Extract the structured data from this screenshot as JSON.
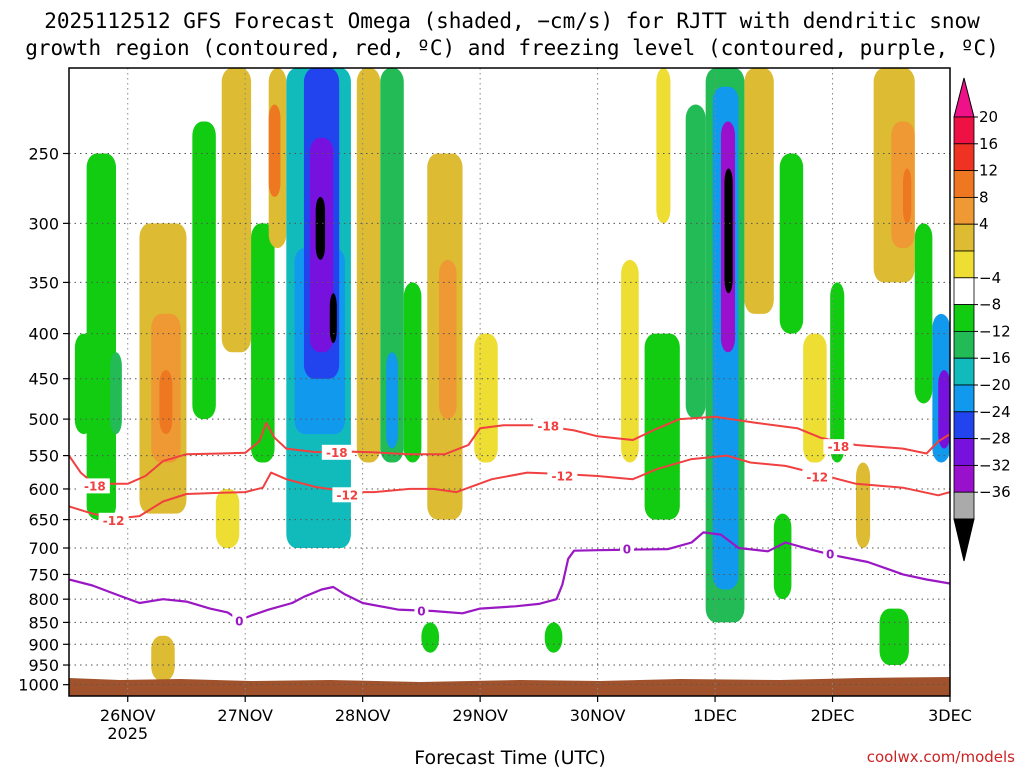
{
  "chart_data": {
    "type": "heatmap",
    "title_line1": "2025112512 GFS Forecast Omega (shaded, −cm/s) for RJTT with dendritic snow",
    "title_line2": "growth region (contoured, red, ºC) and freezing level (contoured, purple, ºC)",
    "xlabel": "Forecast Time (UTC)",
    "credit": "coolwx.com/models",
    "x_ticks": [
      {
        "day": 26,
        "label": "26NOV",
        "sub": "2025"
      },
      {
        "day": 27,
        "label": "27NOV",
        "sub": ""
      },
      {
        "day": 28,
        "label": "28NOV",
        "sub": ""
      },
      {
        "day": 29,
        "label": "29NOV",
        "sub": ""
      },
      {
        "day": 30,
        "label": "30NOV",
        "sub": ""
      },
      {
        "day": 31,
        "label": "1DEC",
        "sub": ""
      },
      {
        "day": 32,
        "label": "2DEC",
        "sub": ""
      },
      {
        "day": 33,
        "label": "3DEC",
        "sub": ""
      }
    ],
    "xlim": [
      25.5,
      33.0
    ],
    "y_axis": "pressure (hPa), log scale, inverted",
    "ylim": [
      1030,
      200
    ],
    "y_ticks": [
      250,
      300,
      350,
      400,
      450,
      500,
      550,
      600,
      650,
      700,
      750,
      800,
      850,
      900,
      950,
      1000
    ],
    "grid": true,
    "colorbar": {
      "labels": [
        "20",
        "16",
        "12",
        "8",
        "4",
        "−4",
        "−8",
        "−12",
        "−16",
        "−20",
        "−24",
        "−28",
        "−32",
        "−36"
      ],
      "colors": [
        "#ee1144",
        "#ee3322",
        "#ee7722",
        "#ee9933",
        "#ddbb33",
        "#eedd33",
        "#ffffff",
        "#11cc11",
        "#22bb55",
        "#11bbbb",
        "#1199ee",
        "#2244ee",
        "#7711dd",
        "#9911cc",
        "#aaaaaa",
        "#000000"
      ]
    },
    "shading_cells": [
      {
        "x0": 25.65,
        "x1": 25.9,
        "p_top": 250,
        "p_bot": 650,
        "value": -6
      },
      {
        "x0": 25.55,
        "x1": 25.7,
        "p_top": 400,
        "p_bot": 520,
        "value": -6
      },
      {
        "x0": 25.85,
        "x1": 25.95,
        "p_top": 420,
        "p_bot": 520,
        "value": -10
      },
      {
        "x0": 26.1,
        "x1": 26.5,
        "p_top": 300,
        "p_bot": 640,
        "value": 6
      },
      {
        "x0": 26.2,
        "x1": 26.45,
        "p_top": 380,
        "p_bot": 560,
        "value": 10
      },
      {
        "x0": 26.27,
        "x1": 26.38,
        "p_top": 440,
        "p_bot": 520,
        "value": 14
      },
      {
        "x0": 26.2,
        "x1": 26.4,
        "p_top": 880,
        "p_bot": 990,
        "value": 6
      },
      {
        "x0": 26.55,
        "x1": 26.75,
        "p_top": 230,
        "p_bot": 500,
        "value": -6
      },
      {
        "x0": 26.8,
        "x1": 27.05,
        "p_top": 200,
        "p_bot": 420,
        "value": 6
      },
      {
        "x0": 26.75,
        "x1": 26.95,
        "p_top": 600,
        "p_bot": 700,
        "value": 5
      },
      {
        "x0": 27.05,
        "x1": 27.25,
        "p_top": 300,
        "p_bot": 560,
        "value": -6
      },
      {
        "x0": 27.2,
        "x1": 27.35,
        "p_top": 200,
        "p_bot": 320,
        "value": 6
      },
      {
        "x0": 27.2,
        "x1": 27.3,
        "p_top": 220,
        "p_bot": 280,
        "value": 12
      },
      {
        "x0": 27.35,
        "x1": 27.9,
        "p_top": 200,
        "p_bot": 700,
        "value": -12
      },
      {
        "x0": 27.42,
        "x1": 27.85,
        "p_top": 320,
        "p_bot": 520,
        "value": -18
      },
      {
        "x0": 27.5,
        "x1": 27.8,
        "p_top": 200,
        "p_bot": 450,
        "value": -22
      },
      {
        "x0": 27.55,
        "x1": 27.75,
        "p_top": 240,
        "p_bot": 420,
        "value": -26
      },
      {
        "x0": 27.6,
        "x1": 27.68,
        "p_top": 280,
        "p_bot": 330,
        "value": -34
      },
      {
        "x0": 27.72,
        "x1": 27.78,
        "p_top": 360,
        "p_bot": 410,
        "value": -34
      },
      {
        "x0": 27.95,
        "x1": 28.15,
        "p_top": 200,
        "p_bot": 560,
        "value": 6
      },
      {
        "x0": 28.15,
        "x1": 28.35,
        "p_top": 200,
        "p_bot": 560,
        "value": -10
      },
      {
        "x0": 28.2,
        "x1": 28.3,
        "p_top": 420,
        "p_bot": 540,
        "value": -18
      },
      {
        "x0": 28.35,
        "x1": 28.5,
        "p_top": 350,
        "p_bot": 560,
        "value": -6
      },
      {
        "x0": 28.55,
        "x1": 28.85,
        "p_top": 250,
        "p_bot": 650,
        "value": 6
      },
      {
        "x0": 28.65,
        "x1": 28.8,
        "p_top": 330,
        "p_bot": 500,
        "value": 10
      },
      {
        "x0": 28.95,
        "x1": 29.15,
        "p_top": 400,
        "p_bot": 560,
        "value": 5
      },
      {
        "x0": 28.5,
        "x1": 28.65,
        "p_top": 850,
        "p_bot": 920,
        "value": -6
      },
      {
        "x0": 29.55,
        "x1": 29.7,
        "p_top": 850,
        "p_bot": 920,
        "value": -6
      },
      {
        "x0": 30.2,
        "x1": 30.35,
        "p_top": 330,
        "p_bot": 560,
        "value": 5
      },
      {
        "x0": 30.4,
        "x1": 30.7,
        "p_top": 400,
        "p_bot": 650,
        "value": -6
      },
      {
        "x0": 30.5,
        "x1": 30.62,
        "p_top": 200,
        "p_bot": 300,
        "value": 5
      },
      {
        "x0": 30.75,
        "x1": 30.92,
        "p_top": 220,
        "p_bot": 500,
        "value": -10
      },
      {
        "x0": 30.92,
        "x1": 31.25,
        "p_top": 200,
        "p_bot": 850,
        "value": -10
      },
      {
        "x0": 30.98,
        "x1": 31.2,
        "p_top": 210,
        "p_bot": 780,
        "value": -18
      },
      {
        "x0": 31.05,
        "x1": 31.17,
        "p_top": 230,
        "p_bot": 420,
        "value": -30
      },
      {
        "x0": 31.08,
        "x1": 31.15,
        "p_top": 260,
        "p_bot": 360,
        "value": -36
      },
      {
        "x0": 31.25,
        "x1": 31.5,
        "p_top": 200,
        "p_bot": 380,
        "value": 6
      },
      {
        "x0": 31.55,
        "x1": 31.75,
        "p_top": 250,
        "p_bot": 400,
        "value": -6
      },
      {
        "x0": 31.75,
        "x1": 31.95,
        "p_top": 400,
        "p_bot": 560,
        "value": 5
      },
      {
        "x0": 31.98,
        "x1": 32.1,
        "p_top": 350,
        "p_bot": 560,
        "value": -6
      },
      {
        "x0": 31.5,
        "x1": 31.65,
        "p_top": 640,
        "p_bot": 800,
        "value": -6
      },
      {
        "x0": 32.35,
        "x1": 32.7,
        "p_top": 200,
        "p_bot": 350,
        "value": 6
      },
      {
        "x0": 32.5,
        "x1": 32.7,
        "p_top": 230,
        "p_bot": 320,
        "value": 11
      },
      {
        "x0": 32.6,
        "x1": 32.67,
        "p_top": 260,
        "p_bot": 300,
        "value": 14
      },
      {
        "x0": 32.7,
        "x1": 32.85,
        "p_top": 300,
        "p_bot": 480,
        "value": -6
      },
      {
        "x0": 32.85,
        "x1": 33.0,
        "p_top": 380,
        "p_bot": 560,
        "value": -16
      },
      {
        "x0": 32.9,
        "x1": 33.0,
        "p_top": 440,
        "p_bot": 540,
        "value": -26
      },
      {
        "x0": 32.4,
        "x1": 32.65,
        "p_top": 820,
        "p_bot": 950,
        "value": -6
      },
      {
        "x0": 32.2,
        "x1": 32.32,
        "p_top": 560,
        "p_bot": 700,
        "value": 6
      }
    ],
    "contours": [
      {
        "name": "-18",
        "color": "#f04040",
        "width": 2,
        "points": [
          [
            25.5,
            550
          ],
          [
            25.6,
            575
          ],
          [
            25.7,
            590
          ],
          [
            25.8,
            592
          ],
          [
            26.0,
            592
          ],
          [
            26.15,
            580
          ],
          [
            26.3,
            558
          ],
          [
            26.5,
            548
          ],
          [
            26.8,
            547
          ],
          [
            27.0,
            546
          ],
          [
            27.12,
            530
          ],
          [
            27.18,
            505
          ],
          [
            27.25,
            525
          ],
          [
            27.35,
            540
          ],
          [
            27.6,
            545
          ],
          [
            27.8,
            544
          ],
          [
            28.05,
            545
          ],
          [
            28.4,
            548
          ],
          [
            28.7,
            548
          ],
          [
            28.9,
            535
          ],
          [
            29.0,
            512
          ],
          [
            29.2,
            508
          ],
          [
            29.5,
            508
          ],
          [
            29.8,
            515
          ],
          [
            30.0,
            523
          ],
          [
            30.3,
            528
          ],
          [
            30.5,
            513
          ],
          [
            30.7,
            500
          ],
          [
            31.0,
            497
          ],
          [
            31.35,
            505
          ],
          [
            31.7,
            512
          ],
          [
            31.9,
            525
          ],
          [
            32.2,
            535
          ],
          [
            32.6,
            540
          ],
          [
            32.8,
            547
          ],
          [
            32.9,
            530
          ],
          [
            33.0,
            520
          ]
        ],
        "label_pos": [
          [
            25.72,
            596
          ],
          [
            27.78,
            546
          ],
          [
            29.58,
            510
          ],
          [
            32.05,
            538
          ]
        ]
      },
      {
        "name": "-12",
        "color": "#f04040",
        "width": 2,
        "points": [
          [
            25.5,
            628
          ],
          [
            25.7,
            640
          ],
          [
            25.9,
            648
          ],
          [
            26.1,
            644
          ],
          [
            26.3,
            620
          ],
          [
            26.5,
            608
          ],
          [
            26.8,
            606
          ],
          [
            27.0,
            605
          ],
          [
            27.15,
            598
          ],
          [
            27.22,
            575
          ],
          [
            27.35,
            585
          ],
          [
            27.6,
            597
          ],
          [
            27.9,
            605
          ],
          [
            28.1,
            605
          ],
          [
            28.4,
            600
          ],
          [
            28.6,
            600
          ],
          [
            28.8,
            605
          ],
          [
            29.1,
            585
          ],
          [
            29.4,
            575
          ],
          [
            29.7,
            577
          ],
          [
            30.0,
            580
          ],
          [
            30.3,
            585
          ],
          [
            30.5,
            570
          ],
          [
            30.8,
            555
          ],
          [
            31.1,
            550
          ],
          [
            31.3,
            560
          ],
          [
            31.6,
            565
          ],
          [
            31.9,
            578
          ],
          [
            32.2,
            592
          ],
          [
            32.6,
            598
          ],
          [
            32.9,
            610
          ],
          [
            33.0,
            605
          ]
        ],
        "label_pos": [
          [
            25.88,
            652
          ],
          [
            27.87,
            610
          ],
          [
            29.7,
            581
          ],
          [
            31.87,
            582
          ]
        ]
      },
      {
        "name": "0",
        "color": "#9a17c4",
        "width": 2.2,
        "points": [
          [
            25.5,
            760
          ],
          [
            25.7,
            772
          ],
          [
            25.9,
            790
          ],
          [
            26.1,
            808
          ],
          [
            26.3,
            800
          ],
          [
            26.5,
            805
          ],
          [
            26.7,
            820
          ],
          [
            26.85,
            828
          ],
          [
            26.95,
            845
          ],
          [
            27.05,
            835
          ],
          [
            27.2,
            822
          ],
          [
            27.4,
            808
          ],
          [
            27.5,
            795
          ],
          [
            27.65,
            780
          ],
          [
            27.75,
            775
          ],
          [
            27.85,
            790
          ],
          [
            28.0,
            808
          ],
          [
            28.3,
            822
          ],
          [
            28.6,
            825
          ],
          [
            28.85,
            830
          ],
          [
            29.0,
            820
          ],
          [
            29.3,
            815
          ],
          [
            29.5,
            810
          ],
          [
            29.65,
            800
          ],
          [
            29.7,
            770
          ],
          [
            29.75,
            720
          ],
          [
            29.8,
            705
          ],
          [
            30.0,
            704
          ],
          [
            30.3,
            703
          ],
          [
            30.6,
            702
          ],
          [
            30.8,
            690
          ],
          [
            30.9,
            672
          ],
          [
            31.05,
            676
          ],
          [
            31.2,
            700
          ],
          [
            31.45,
            706
          ],
          [
            31.6,
            690
          ],
          [
            31.8,
            702
          ],
          [
            32.0,
            713
          ],
          [
            32.3,
            726
          ],
          [
            32.6,
            750
          ],
          [
            32.8,
            760
          ],
          [
            33.0,
            768
          ]
        ],
        "label_pos": [
          [
            26.95,
            848
          ],
          [
            28.5,
            826
          ],
          [
            30.25,
            703
          ],
          [
            31.98,
            712
          ]
        ]
      }
    ]
  }
}
